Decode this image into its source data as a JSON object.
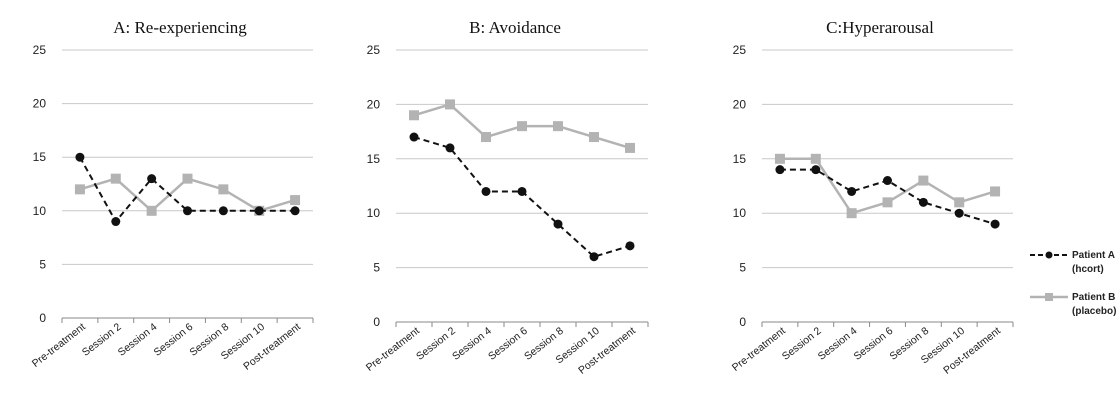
{
  "legend": [
    {
      "line1": "Patient A",
      "line2": "(hcort)",
      "color": "#111111",
      "style": "dashed",
      "marker": "circle"
    },
    {
      "line1": "Patient B",
      "line2": "(placebo)",
      "color": "#b3b3b3",
      "style": "solid",
      "marker": "square"
    }
  ],
  "chart_data": [
    {
      "type": "line",
      "title": "A:  Re-experiencing",
      "categories": [
        "Pre-treatment",
        "Session 2",
        "Session 4",
        "Session 6",
        "Session 8",
        "Session 10",
        "Post-treatment"
      ],
      "ylim": [
        0,
        25
      ],
      "yticks": [
        0,
        5,
        10,
        15,
        20,
        25
      ],
      "grid": true,
      "series": [
        {
          "name": "Patient A (hcort)",
          "values": [
            15,
            9,
            13,
            10,
            10,
            10,
            10
          ]
        },
        {
          "name": "Patient B (placebo)",
          "values": [
            12,
            13,
            10,
            13,
            12,
            10,
            11
          ]
        }
      ]
    },
    {
      "type": "line",
      "title": "B:  Avoidance",
      "categories": [
        "Pre-treatment",
        "Session 2",
        "Session 4",
        "Session 6",
        "Session 8",
        "Session 10",
        "Post-treatment"
      ],
      "ylim": [
        0,
        25
      ],
      "yticks": [
        0,
        5,
        10,
        15,
        20,
        25
      ],
      "grid": true,
      "series": [
        {
          "name": "Patient A (hcort)",
          "values": [
            17,
            16,
            12,
            12,
            9,
            6,
            7
          ]
        },
        {
          "name": "Patient B (placebo)",
          "values": [
            19,
            20,
            17,
            18,
            18,
            17,
            16
          ]
        }
      ]
    },
    {
      "type": "line",
      "title": "C:Hyperarousal",
      "categories": [
        "Pre-treatment",
        "Session 2",
        "Session 4",
        "Session 6",
        "Session 8",
        "Session 10",
        "Post-treatment"
      ],
      "ylim": [
        0,
        25
      ],
      "yticks": [
        0,
        5,
        10,
        15,
        20,
        25
      ],
      "grid": true,
      "series": [
        {
          "name": "Patient A (hcort)",
          "values": [
            14,
            14,
            12,
            13,
            11,
            10,
            9
          ]
        },
        {
          "name": "Patient B (placebo)",
          "values": [
            15,
            15,
            10,
            11,
            13,
            11,
            12
          ]
        }
      ]
    }
  ]
}
